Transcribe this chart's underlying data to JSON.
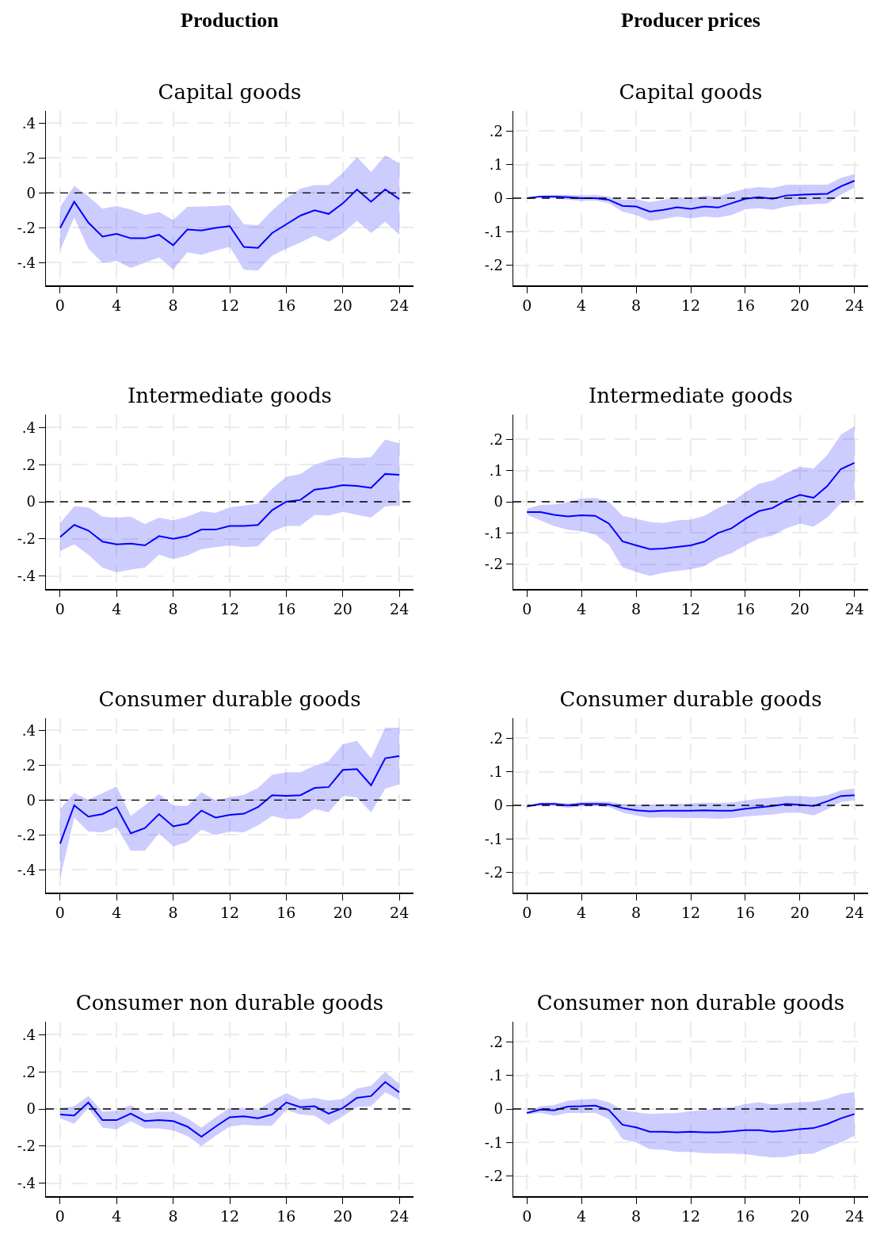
{
  "chart_data": [
    {
      "type": "line",
      "subtitle": "Production",
      "title": "Capital goods",
      "x": [
        0,
        1,
        2,
        3,
        4,
        5,
        6,
        7,
        8,
        9,
        10,
        11,
        12,
        13,
        14,
        15,
        16,
        17,
        18,
        19,
        20,
        21,
        22,
        23,
        24
      ],
      "xlim": [
        -1,
        25
      ],
      "xticks": [
        0,
        4,
        8,
        12,
        16,
        20,
        24
      ],
      "ylim": [
        -0.53,
        0.47
      ],
      "yticks": [
        {
          "value": -0.4,
          "label": "-.4"
        },
        {
          "value": -0.2,
          "label": "-.2"
        },
        {
          "value": 0,
          "label": "0"
        },
        {
          "value": 0.2,
          "label": ".2"
        },
        {
          "value": 0.4,
          "label": ".4"
        }
      ],
      "grid": true,
      "marker": "none",
      "line_style": "solid",
      "ref_lines": [
        {
          "axis": "y",
          "value": 0,
          "line_style": "dashed",
          "color": "#000000"
        }
      ],
      "series": [
        {
          "color": "#0000ff",
          "values": [
            -0.2,
            -0.05,
            -0.17,
            -0.25,
            -0.235,
            -0.26,
            -0.26,
            -0.24,
            -0.3,
            -0.21,
            -0.215,
            -0.2,
            -0.19,
            -0.31,
            -0.315,
            -0.23,
            -0.18,
            -0.13,
            -0.1,
            -0.12,
            -0.06,
            0.02,
            -0.05,
            0.02,
            -0.035
          ],
          "lower": [
            -0.33,
            -0.14,
            -0.32,
            -0.4,
            -0.39,
            -0.43,
            -0.4,
            -0.37,
            -0.44,
            -0.34,
            -0.355,
            -0.33,
            -0.31,
            -0.44,
            -0.445,
            -0.36,
            -0.32,
            -0.285,
            -0.245,
            -0.28,
            -0.23,
            -0.16,
            -0.23,
            -0.165,
            -0.24
          ],
          "upper": [
            -0.08,
            0.04,
            -0.02,
            -0.09,
            -0.075,
            -0.095,
            -0.125,
            -0.11,
            -0.155,
            -0.08,
            -0.078,
            -0.075,
            -0.07,
            -0.18,
            -0.185,
            -0.1,
            -0.03,
            0.025,
            0.045,
            0.045,
            0.115,
            0.205,
            0.12,
            0.215,
            0.17
          ]
        }
      ]
    },
    {
      "type": "line",
      "subtitle": "Producer prices",
      "title": "Capital goods",
      "x": [
        0,
        1,
        2,
        3,
        4,
        5,
        6,
        7,
        8,
        9,
        10,
        11,
        12,
        13,
        14,
        15,
        16,
        17,
        18,
        19,
        20,
        21,
        22,
        23,
        24
      ],
      "xlim": [
        -1,
        25
      ],
      "xticks": [
        0,
        4,
        8,
        12,
        16,
        20,
        24
      ],
      "ylim": [
        -0.26,
        0.26
      ],
      "yticks": [
        {
          "value": -0.2,
          "label": "-.2"
        },
        {
          "value": -0.1,
          "label": "-.1"
        },
        {
          "value": 0,
          "label": "0"
        },
        {
          "value": 0.1,
          "label": ".1"
        },
        {
          "value": 0.2,
          "label": ".2"
        }
      ],
      "grid": true,
      "marker": "none",
      "line_style": "solid",
      "ref_lines": [
        {
          "axis": "y",
          "value": 0,
          "line_style": "dashed",
          "color": "#000000"
        }
      ],
      "series": [
        {
          "color": "#0000ff",
          "values": [
            0,
            0.005,
            0.005,
            0.003,
            0,
            0,
            -0.005,
            -0.023,
            -0.025,
            -0.04,
            -0.035,
            -0.027,
            -0.032,
            -0.025,
            -0.028,
            -0.015,
            -0.002,
            0.003,
            -0.002,
            0.008,
            0.01,
            0.012,
            0.013,
            0.035,
            0.052
          ],
          "lower": [
            -0.003,
            0.002,
            0,
            -0.005,
            -0.008,
            -0.007,
            -0.015,
            -0.04,
            -0.05,
            -0.068,
            -0.062,
            -0.055,
            -0.06,
            -0.055,
            -0.058,
            -0.05,
            -0.033,
            -0.03,
            -0.035,
            -0.025,
            -0.02,
            -0.018,
            -0.016,
            0.01,
            0.032
          ],
          "upper": [
            0,
            0.007,
            0.01,
            0.01,
            0.008,
            0.01,
            0.005,
            -0.005,
            -0.003,
            -0.012,
            -0.005,
            0.003,
            0,
            0.007,
            0.005,
            0.018,
            0.028,
            0.033,
            0.03,
            0.04,
            0.04,
            0.04,
            0.04,
            0.06,
            0.072
          ]
        }
      ]
    },
    {
      "type": "line",
      "title": "Intermediate goods",
      "x": [
        0,
        1,
        2,
        3,
        4,
        5,
        6,
        7,
        8,
        9,
        10,
        11,
        12,
        13,
        14,
        15,
        16,
        17,
        18,
        19,
        20,
        21,
        22,
        23,
        24
      ],
      "xlim": [
        -1,
        25
      ],
      "xticks": [
        0,
        4,
        8,
        12,
        16,
        20,
        24
      ],
      "ylim": [
        -0.47,
        0.47
      ],
      "yticks": [
        {
          "value": -0.4,
          "label": "-.4"
        },
        {
          "value": -0.2,
          "label": "-.2"
        },
        {
          "value": 0,
          "label": "0"
        },
        {
          "value": 0.2,
          "label": ".2"
        },
        {
          "value": 0.4,
          "label": ".4"
        }
      ],
      "grid": true,
      "marker": "none",
      "line_style": "solid",
      "ref_lines": [
        {
          "axis": "y",
          "value": 0,
          "line_style": "dashed",
          "color": "#000000"
        }
      ],
      "series": [
        {
          "color": "#0000ff",
          "values": [
            -0.19,
            -0.125,
            -0.155,
            -0.215,
            -0.23,
            -0.225,
            -0.235,
            -0.185,
            -0.2,
            -0.185,
            -0.15,
            -0.15,
            -0.13,
            -0.13,
            -0.125,
            -0.045,
            0,
            0.01,
            0.065,
            0.075,
            0.09,
            0.085,
            0.075,
            0.15,
            0.145
          ],
          "lower": [
            -0.265,
            -0.23,
            -0.285,
            -0.355,
            -0.38,
            -0.365,
            -0.355,
            -0.285,
            -0.31,
            -0.29,
            -0.255,
            -0.245,
            -0.235,
            -0.245,
            -0.24,
            -0.16,
            -0.13,
            -0.13,
            -0.07,
            -0.075,
            -0.055,
            -0.07,
            -0.085,
            -0.025,
            -0.02
          ],
          "upper": [
            -0.115,
            -0.025,
            -0.03,
            -0.08,
            -0.085,
            -0.08,
            -0.12,
            -0.085,
            -0.1,
            -0.08,
            -0.05,
            -0.06,
            -0.03,
            -0.02,
            -0.01,
            0.07,
            0.135,
            0.15,
            0.2,
            0.225,
            0.24,
            0.235,
            0.24,
            0.335,
            0.315
          ]
        }
      ]
    },
    {
      "type": "line",
      "title": "Intermediate goods",
      "x": [
        0,
        1,
        2,
        3,
        4,
        5,
        6,
        7,
        8,
        9,
        10,
        11,
        12,
        13,
        14,
        15,
        16,
        17,
        18,
        19,
        20,
        21,
        22,
        23,
        24
      ],
      "xlim": [
        -1,
        25
      ],
      "xticks": [
        0,
        4,
        8,
        12,
        16,
        20,
        24
      ],
      "ylim": [
        -0.28,
        0.28
      ],
      "yticks": [
        {
          "value": -0.2,
          "label": "-.2"
        },
        {
          "value": -0.1,
          "label": "-.1"
        },
        {
          "value": 0,
          "label": "0"
        },
        {
          "value": 0.1,
          "label": ".1"
        },
        {
          "value": 0.2,
          "label": ".2"
        }
      ],
      "grid": true,
      "marker": "none",
      "line_style": "solid",
      "ref_lines": [
        {
          "axis": "y",
          "value": 0,
          "line_style": "dashed",
          "color": "#000000"
        }
      ],
      "series": [
        {
          "color": "#0000ff",
          "values": [
            -0.033,
            -0.033,
            -0.042,
            -0.047,
            -0.043,
            -0.045,
            -0.07,
            -0.127,
            -0.14,
            -0.152,
            -0.15,
            -0.145,
            -0.14,
            -0.128,
            -0.1,
            -0.085,
            -0.055,
            -0.03,
            -0.02,
            0.005,
            0.022,
            0.013,
            0.05,
            0.105,
            0.125
          ],
          "lower": [
            -0.042,
            -0.06,
            -0.078,
            -0.09,
            -0.095,
            -0.105,
            -0.138,
            -0.21,
            -0.225,
            -0.238,
            -0.228,
            -0.222,
            -0.217,
            -0.207,
            -0.18,
            -0.165,
            -0.14,
            -0.118,
            -0.108,
            -0.085,
            -0.07,
            -0.08,
            -0.05,
            -0.005,
            0.008
          ],
          "upper": [
            -0.022,
            -0.01,
            -0.008,
            -0.002,
            0.01,
            0.013,
            0,
            -0.045,
            -0.055,
            -0.065,
            -0.068,
            -0.06,
            -0.057,
            -0.045,
            -0.02,
            0,
            0.03,
            0.058,
            0.068,
            0.093,
            0.112,
            0.107,
            0.15,
            0.215,
            0.243
          ]
        }
      ]
    },
    {
      "type": "line",
      "title": "Consumer durable goods",
      "x": [
        0,
        1,
        2,
        3,
        4,
        5,
        6,
        7,
        8,
        9,
        10,
        11,
        12,
        13,
        14,
        15,
        16,
        17,
        18,
        19,
        20,
        21,
        22,
        23,
        24
      ],
      "xlim": [
        -1,
        25
      ],
      "xticks": [
        0,
        4,
        8,
        12,
        16,
        20,
        24
      ],
      "ylim": [
        -0.53,
        0.47
      ],
      "yticks": [
        {
          "value": -0.4,
          "label": "-.4"
        },
        {
          "value": -0.2,
          "label": "-.2"
        },
        {
          "value": 0,
          "label": "0"
        },
        {
          "value": 0.2,
          "label": ".2"
        },
        {
          "value": 0.4,
          "label": ".4"
        }
      ],
      "grid": true,
      "marker": "none",
      "line_style": "solid",
      "ref_lines": [
        {
          "axis": "y",
          "value": 0,
          "line_style": "dashed",
          "color": "#000000"
        }
      ],
      "series": [
        {
          "color": "#0000ff",
          "values": [
            -0.25,
            -0.03,
            -0.095,
            -0.08,
            -0.04,
            -0.19,
            -0.16,
            -0.08,
            -0.15,
            -0.135,
            -0.06,
            -0.1,
            -0.085,
            -0.078,
            -0.04,
            0.028,
            0.025,
            0.028,
            0.07,
            0.075,
            0.173,
            0.178,
            0.085,
            0.24,
            0.253
          ],
          "lower": [
            -0.45,
            -0.1,
            -0.18,
            -0.185,
            -0.155,
            -0.29,
            -0.29,
            -0.19,
            -0.265,
            -0.24,
            -0.17,
            -0.2,
            -0.18,
            -0.185,
            -0.145,
            -0.09,
            -0.11,
            -0.105,
            -0.05,
            -0.07,
            0.025,
            0.015,
            -0.07,
            0.065,
            0.09
          ],
          "upper": [
            -0.05,
            0.04,
            0.002,
            0.04,
            0.078,
            -0.09,
            -0.03,
            0.035,
            -0.03,
            -0.033,
            0.045,
            0,
            0.017,
            0.03,
            0.07,
            0.145,
            0.16,
            0.16,
            0.197,
            0.225,
            0.32,
            0.34,
            0.24,
            0.415,
            0.415
          ]
        }
      ]
    },
    {
      "type": "line",
      "title": "Consumer durable goods",
      "x": [
        0,
        1,
        2,
        3,
        4,
        5,
        6,
        7,
        8,
        9,
        10,
        11,
        12,
        13,
        14,
        15,
        16,
        17,
        18,
        19,
        20,
        21,
        22,
        23,
        24
      ],
      "xlim": [
        -1,
        25
      ],
      "xticks": [
        0,
        4,
        8,
        12,
        16,
        20,
        24
      ],
      "ylim": [
        -0.26,
        0.26
      ],
      "yticks": [
        {
          "value": -0.2,
          "label": "-.2"
        },
        {
          "value": -0.1,
          "label": "-.1"
        },
        {
          "value": 0,
          "label": "0"
        },
        {
          "value": 0.1,
          "label": ".1"
        },
        {
          "value": 0.2,
          "label": ".2"
        }
      ],
      "grid": true,
      "marker": "none",
      "line_style": "solid",
      "ref_lines": [
        {
          "axis": "y",
          "value": 0,
          "line_style": "dashed",
          "color": "#000000"
        }
      ],
      "series": [
        {
          "color": "#0000ff",
          "values": [
            -0.003,
            0.004,
            0.004,
            0,
            0.004,
            0.004,
            0.003,
            -0.008,
            -0.015,
            -0.018,
            -0.016,
            -0.016,
            -0.016,
            -0.015,
            -0.016,
            -0.016,
            -0.01,
            -0.006,
            -0.002,
            0.004,
            0.002,
            -0.002,
            0.012,
            0.028,
            0.03
          ],
          "lower": [
            -0.006,
            0,
            0,
            -0.008,
            -0.003,
            -0.002,
            -0.005,
            -0.022,
            -0.03,
            -0.037,
            -0.036,
            -0.037,
            -0.038,
            -0.038,
            -0.04,
            -0.038,
            -0.033,
            -0.03,
            -0.027,
            -0.022,
            -0.022,
            -0.03,
            -0.012,
            0.01,
            0.015
          ],
          "upper": [
            0,
            0.008,
            0.009,
            0.006,
            0.01,
            0.011,
            0.011,
            0.005,
            0.003,
            0.002,
            0.005,
            0.005,
            0.006,
            0.008,
            0.007,
            0.009,
            0.015,
            0.02,
            0.023,
            0.028,
            0.028,
            0.025,
            0.03,
            0.045,
            0.05
          ]
        }
      ]
    },
    {
      "type": "line",
      "title": "Consumer non durable goods",
      "x": [
        0,
        1,
        2,
        3,
        4,
        5,
        6,
        7,
        8,
        9,
        10,
        11,
        12,
        13,
        14,
        15,
        16,
        17,
        18,
        19,
        20,
        21,
        22,
        23,
        24
      ],
      "xlim": [
        -1,
        25
      ],
      "xticks": [
        0,
        4,
        8,
        12,
        16,
        20,
        24
      ],
      "ylim": [
        -0.47,
        0.47
      ],
      "yticks": [
        {
          "value": -0.4,
          "label": "-.4"
        },
        {
          "value": -0.2,
          "label": "-.2"
        },
        {
          "value": 0,
          "label": "0"
        },
        {
          "value": 0.2,
          "label": ".2"
        },
        {
          "value": 0.4,
          "label": ".4"
        }
      ],
      "grid": true,
      "marker": "none",
      "line_style": "solid",
      "ref_lines": [
        {
          "axis": "y",
          "value": 0,
          "line_style": "dashed",
          "color": "#000000"
        }
      ],
      "series": [
        {
          "color": "#0000ff",
          "values": [
            -0.03,
            -0.035,
            0.035,
            -0.06,
            -0.06,
            -0.025,
            -0.065,
            -0.06,
            -0.065,
            -0.095,
            -0.15,
            -0.095,
            -0.045,
            -0.04,
            -0.05,
            -0.03,
            0.035,
            0.01,
            0.015,
            -0.025,
            0.005,
            0.06,
            0.07,
            0.145,
            0.09
          ],
          "lower": [
            -0.05,
            -0.08,
            0.005,
            -0.1,
            -0.11,
            -0.065,
            -0.105,
            -0.105,
            -0.115,
            -0.145,
            -0.2,
            -0.145,
            -0.095,
            -0.085,
            -0.09,
            -0.09,
            -0.005,
            -0.03,
            -0.035,
            -0.085,
            -0.04,
            0.01,
            0.015,
            0.09,
            0.05
          ],
          "upper": [
            0.005,
            0.015,
            0.07,
            -0.015,
            -0.01,
            0.02,
            -0.025,
            -0.015,
            -0.015,
            -0.05,
            -0.1,
            -0.045,
            0.005,
            0.005,
            -0.005,
            0.045,
            0.085,
            0.05,
            0.06,
            0.045,
            0.055,
            0.11,
            0.125,
            0.2,
            0.135
          ]
        }
      ]
    },
    {
      "type": "line",
      "title": "Consumer non durable goods",
      "x": [
        0,
        1,
        2,
        3,
        4,
        5,
        6,
        7,
        8,
        9,
        10,
        11,
        12,
        13,
        14,
        15,
        16,
        17,
        18,
        19,
        20,
        21,
        22,
        23,
        24
      ],
      "xlim": [
        -1,
        25
      ],
      "xticks": [
        0,
        4,
        8,
        12,
        16,
        20,
        24
      ],
      "ylim": [
        -0.26,
        0.26
      ],
      "yticks": [
        {
          "value": -0.2,
          "label": "-.2"
        },
        {
          "value": -0.1,
          "label": "-.1"
        },
        {
          "value": 0,
          "label": "0"
        },
        {
          "value": 0.1,
          "label": ".1"
        },
        {
          "value": 0.2,
          "label": ".2"
        }
      ],
      "grid": true,
      "marker": "none",
      "line_style": "solid",
      "ref_lines": [
        {
          "axis": "y",
          "value": 0,
          "line_style": "dashed",
          "color": "#000000"
        }
      ],
      "series": [
        {
          "color": "#0000ff",
          "values": [
            -0.012,
            -0.002,
            -0.004,
            0.007,
            0.008,
            0.01,
            -0.003,
            -0.047,
            -0.055,
            -0.068,
            -0.068,
            -0.07,
            -0.068,
            -0.07,
            -0.07,
            -0.067,
            -0.063,
            -0.063,
            -0.068,
            -0.065,
            -0.06,
            -0.057,
            -0.045,
            -0.028,
            -0.015
          ],
          "lower": [
            -0.016,
            -0.012,
            -0.02,
            -0.012,
            -0.012,
            -0.012,
            -0.03,
            -0.09,
            -0.1,
            -0.12,
            -0.122,
            -0.128,
            -0.128,
            -0.132,
            -0.133,
            -0.133,
            -0.135,
            -0.14,
            -0.145,
            -0.143,
            -0.135,
            -0.133,
            -0.115,
            -0.1,
            -0.08
          ],
          "upper": [
            -0.008,
            0.008,
            0.012,
            0.025,
            0.028,
            0.03,
            0.02,
            -0.003,
            -0.01,
            -0.015,
            -0.013,
            -0.012,
            -0.007,
            -0.003,
            0.003,
            0.005,
            0.015,
            0.02,
            0.013,
            0.017,
            0.02,
            0.022,
            0.03,
            0.045,
            0.05
          ]
        }
      ]
    }
  ]
}
